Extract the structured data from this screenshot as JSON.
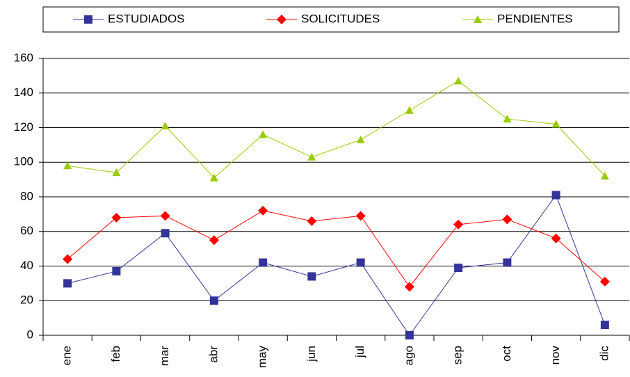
{
  "chart_data": {
    "type": "line",
    "categories": [
      "ene",
      "feb",
      "mar",
      "abr",
      "may",
      "jun",
      "jul",
      "ago",
      "sep",
      "oct",
      "nov",
      "dic"
    ],
    "series": [
      {
        "name": "ESTUDIADOS",
        "color": "#333399",
        "marker": "square",
        "values": [
          30,
          37,
          59,
          20,
          42,
          34,
          42,
          0,
          39,
          42,
          81,
          6
        ]
      },
      {
        "name": "SOLICITUDES",
        "color": "#ff0000",
        "marker": "diamond",
        "values": [
          44,
          68,
          69,
          55,
          72,
          66,
          69,
          28,
          64,
          67,
          56,
          31
        ]
      },
      {
        "name": "PENDIENTES",
        "color": "#99cc00",
        "marker": "triangle",
        "values": [
          98,
          94,
          121,
          91,
          116,
          103,
          113,
          130,
          147,
          125,
          122,
          92
        ]
      }
    ],
    "ylim": [
      0,
      160
    ],
    "yticks": [
      0,
      20,
      40,
      60,
      80,
      100,
      120,
      140,
      160
    ],
    "grid": true,
    "legend": "top"
  }
}
